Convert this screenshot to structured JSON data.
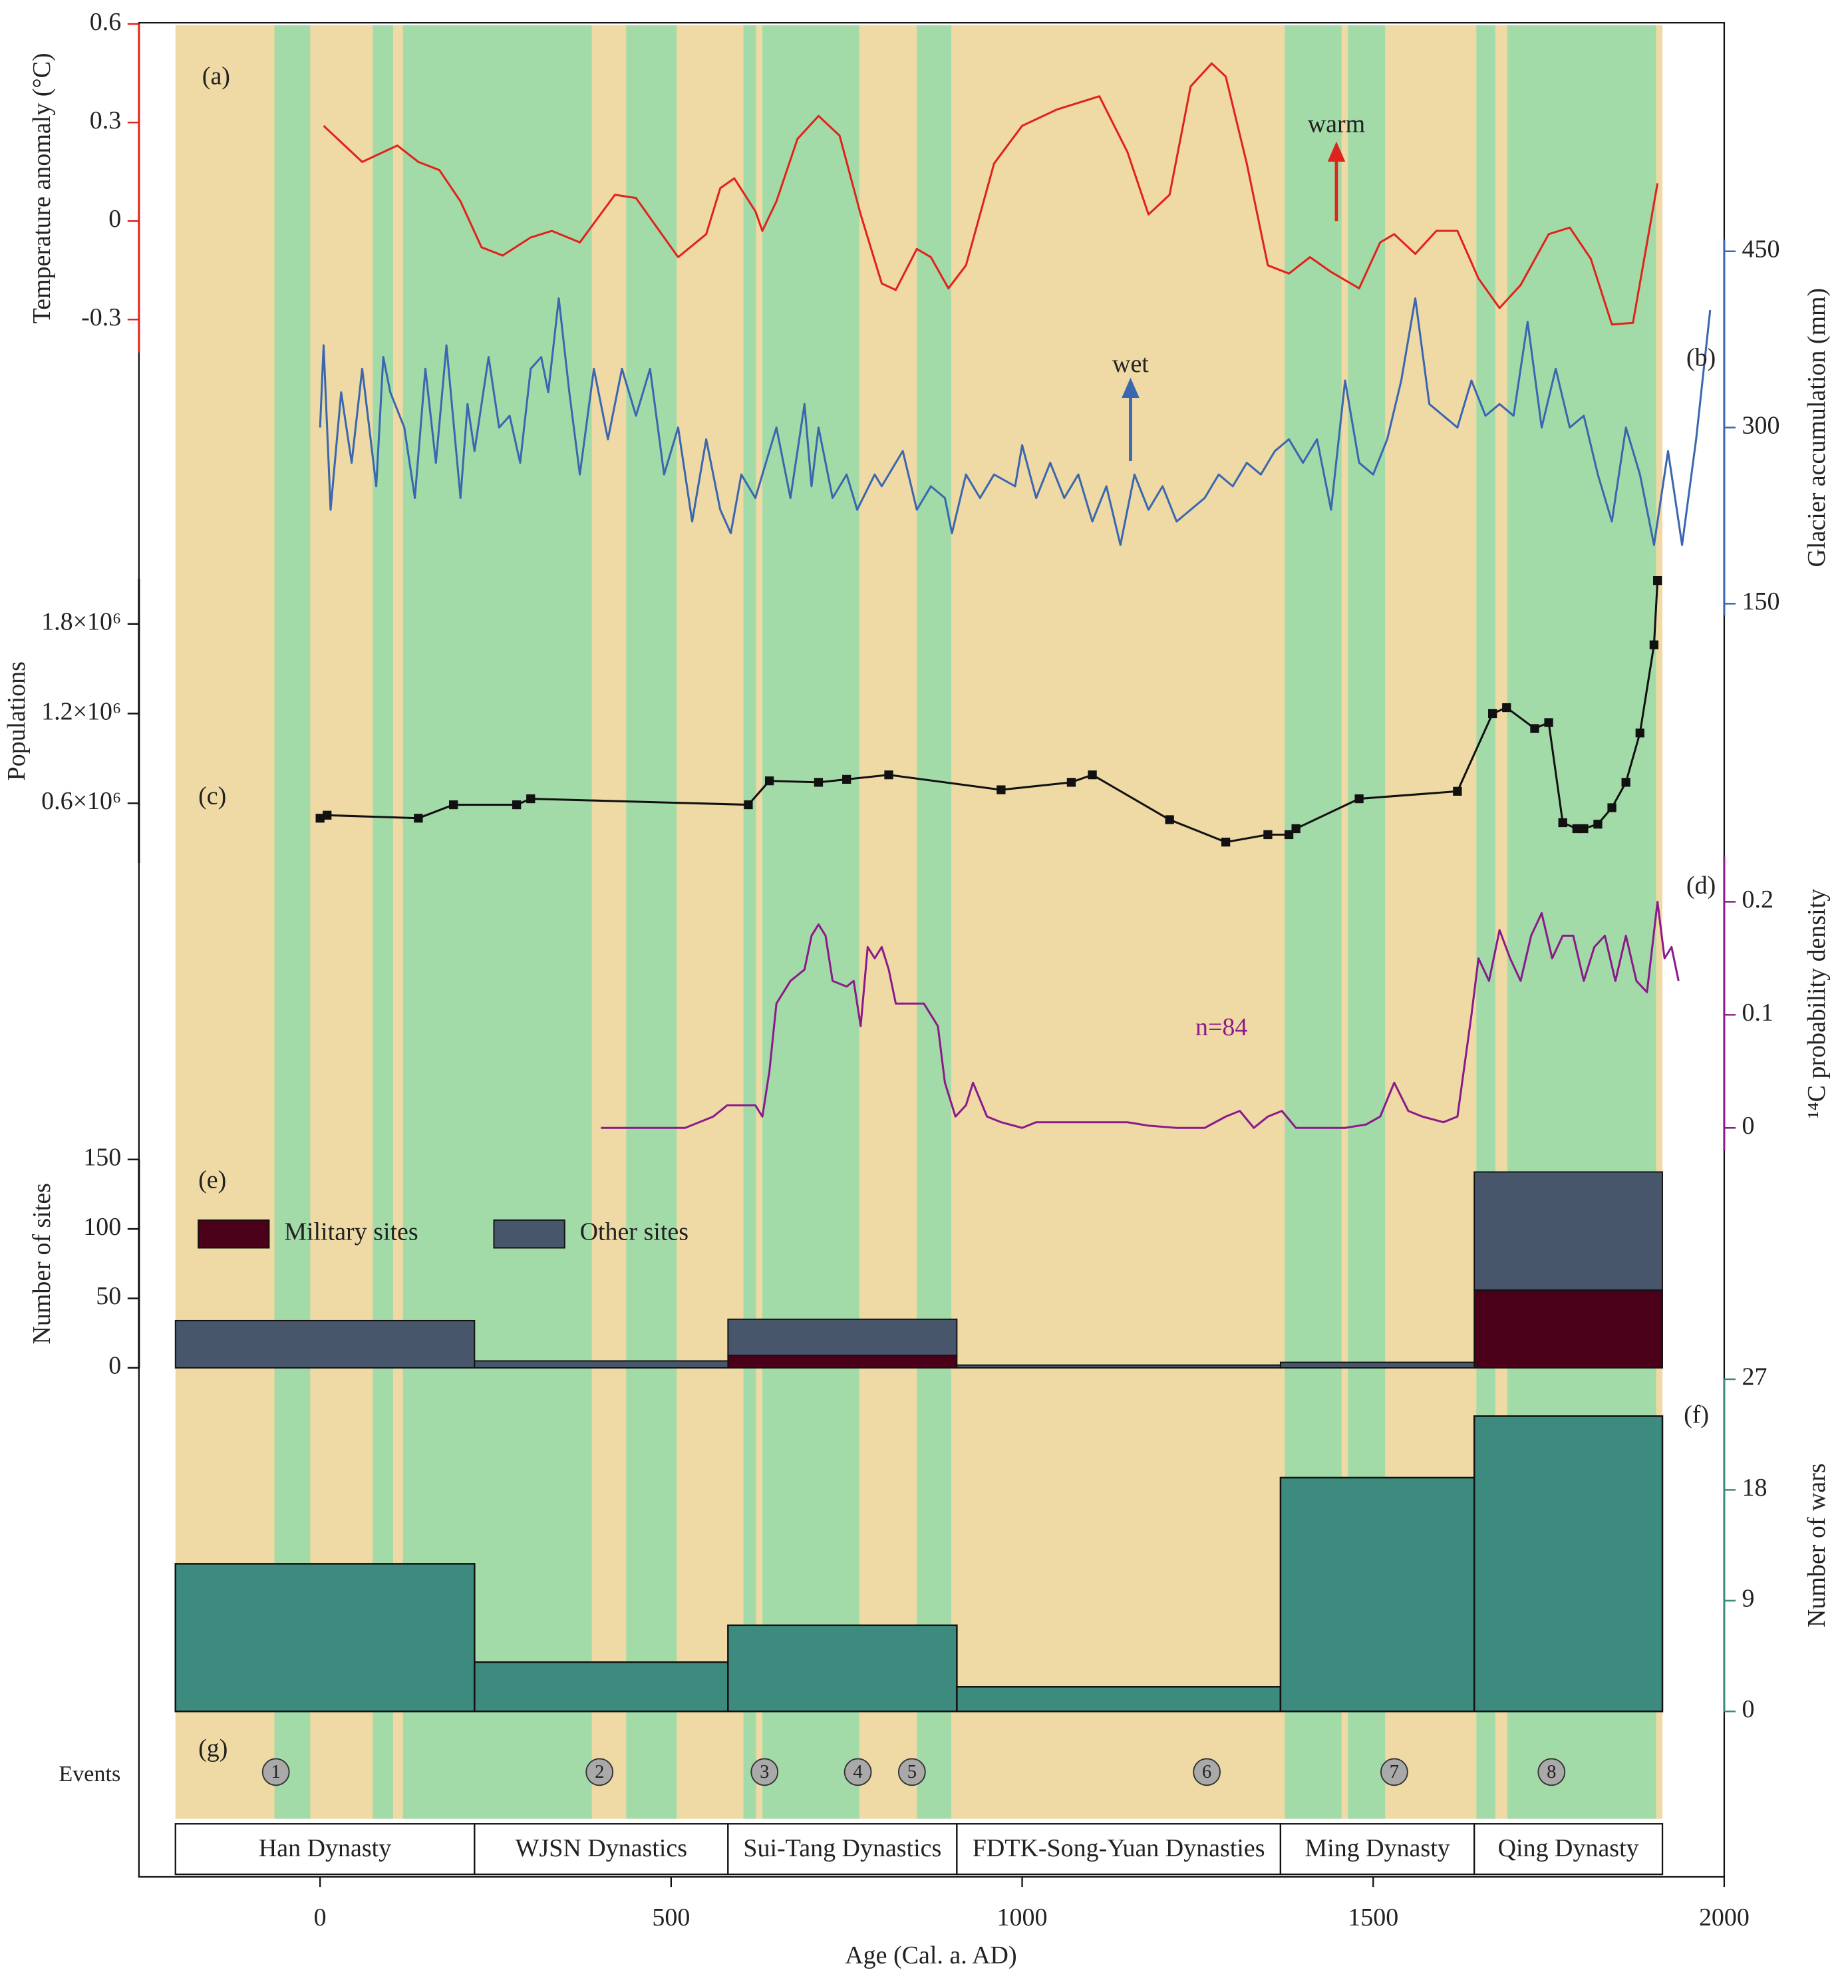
{
  "x_axis": {
    "label": "Age (Cal. a. AD)",
    "xlim": [
      -258,
      2000
    ],
    "xticks": [
      0,
      500,
      1000,
      1500,
      2000
    ]
  },
  "background": {
    "base_color": "#efd9a5",
    "band_color": "#a3dba8",
    "bands": [
      [
        -65,
        -14
      ],
      [
        75,
        104
      ],
      [
        118,
        387
      ],
      [
        436,
        508
      ],
      [
        603,
        621
      ],
      [
        630,
        768
      ],
      [
        850,
        899
      ],
      [
        1374,
        1455
      ],
      [
        1464,
        1517
      ],
      [
        1647,
        1674
      ],
      [
        1691,
        1903
      ]
    ]
  },
  "periods": {
    "names": [
      "Han Dynasty",
      "WJSN Dynastics",
      "Sui-Tang Dynastics",
      "FDTK-Song-Yuan Dynasties",
      "Ming Dynasty",
      "Qing Dynasty"
    ],
    "bounds": [
      -206,
      220,
      581,
      907,
      1368,
      1644,
      1912
    ]
  },
  "events": {
    "label": "Events",
    "panel_label": "(g)",
    "names": [
      "1",
      "2",
      "3",
      "4",
      "5",
      "6",
      "7",
      "8"
    ],
    "x": [
      -63,
      398,
      633,
      766,
      843,
      1263,
      1530,
      1754
    ]
  },
  "chart_data": [
    {
      "type": "line",
      "panel_label": "(a)",
      "ylabel": "Temperature anomaly (°C)",
      "axis_side": "left",
      "color": "#e0231c",
      "annotation": "warm",
      "ylim": [
        -0.4,
        0.6
      ],
      "yticks": [
        0.6,
        0.3,
        0,
        -0.3
      ],
      "x": [
        5,
        60,
        110,
        140,
        170,
        200,
        230,
        260,
        300,
        330,
        370,
        420,
        450,
        480,
        510,
        550,
        570,
        590,
        620,
        630,
        650,
        680,
        710,
        740,
        770,
        800,
        820,
        850,
        870,
        895,
        920,
        960,
        1000,
        1050,
        1080,
        1110,
        1150,
        1180,
        1210,
        1240,
        1270,
        1290,
        1320,
        1350,
        1380,
        1410,
        1440,
        1480,
        1510,
        1530,
        1560,
        1590,
        1620,
        1650,
        1680,
        1710,
        1750,
        1780,
        1810,
        1840,
        1870,
        1905
      ],
      "values": [
        0.29,
        0.18,
        0.23,
        0.18,
        0.155,
        0.06,
        -0.08,
        -0.105,
        -0.05,
        -0.03,
        -0.065,
        0.08,
        0.07,
        -0.02,
        -0.11,
        -0.04,
        0.1,
        0.13,
        0.03,
        -0.03,
        0.06,
        0.25,
        0.32,
        0.26,
        0.02,
        -0.19,
        -0.21,
        -0.085,
        -0.11,
        -0.205,
        -0.135,
        0.175,
        0.29,
        0.34,
        0.36,
        0.38,
        0.21,
        0.02,
        0.08,
        0.41,
        0.48,
        0.44,
        0.175,
        -0.135,
        -0.16,
        -0.11,
        -0.155,
        -0.205,
        -0.065,
        -0.04,
        -0.1,
        -0.03,
        -0.03,
        -0.175,
        -0.265,
        -0.195,
        -0.04,
        -0.02,
        -0.115,
        -0.315,
        -0.31,
        0.115
      ]
    },
    {
      "type": "line",
      "panel_label": "(b)",
      "ylabel": "Glacier accumulation (mm)",
      "axis_side": "right",
      "color": "#3a67b0",
      "annotation": "wet",
      "ylim": [
        140,
        460
      ],
      "yticks": [
        450,
        300,
        150
      ],
      "x": [
        0,
        5,
        15,
        30,
        45,
        60,
        80,
        90,
        100,
        120,
        135,
        150,
        165,
        180,
        200,
        210,
        220,
        240,
        255,
        270,
        285,
        300,
        315,
        325,
        340,
        355,
        370,
        390,
        410,
        430,
        450,
        470,
        490,
        510,
        530,
        550,
        570,
        585,
        600,
        620,
        650,
        670,
        690,
        700,
        710,
        730,
        750,
        765,
        790,
        800,
        830,
        850,
        870,
        890,
        900,
        920,
        940,
        960,
        990,
        1000,
        1020,
        1040,
        1060,
        1080,
        1100,
        1120,
        1140,
        1160,
        1180,
        1200,
        1220,
        1240,
        1260,
        1280,
        1300,
        1320,
        1340,
        1360,
        1380,
        1400,
        1420,
        1440,
        1460,
        1480,
        1500,
        1520,
        1540,
        1560,
        1580,
        1600,
        1620,
        1640,
        1660,
        1680,
        1700,
        1720,
        1740,
        1760,
        1780,
        1800,
        1820,
        1840,
        1860,
        1880,
        1900,
        1920,
        1940,
        1960,
        1980
      ],
      "values": [
        300,
        370,
        230,
        330,
        270,
        350,
        250,
        360,
        330,
        300,
        240,
        350,
        270,
        370,
        240,
        320,
        280,
        360,
        300,
        310,
        270,
        350,
        360,
        330,
        410,
        330,
        260,
        350,
        290,
        350,
        310,
        350,
        260,
        300,
        220,
        290,
        230,
        210,
        260,
        240,
        300,
        240,
        320,
        250,
        300,
        240,
        260,
        230,
        260,
        250,
        280,
        230,
        250,
        240,
        210,
        260,
        240,
        260,
        250,
        285,
        240,
        270,
        240,
        260,
        220,
        250,
        200,
        260,
        230,
        250,
        220,
        230,
        240,
        260,
        250,
        270,
        260,
        280,
        290,
        270,
        290,
        230,
        340,
        270,
        260,
        290,
        340,
        410,
        320,
        310,
        300,
        340,
        310,
        320,
        310,
        390,
        300,
        350,
        300,
        310,
        260,
        220,
        300,
        260,
        200,
        280,
        200,
        290,
        400
      ]
    },
    {
      "type": "line",
      "panel_label": "(c)",
      "ylabel": "Populations",
      "axis_side": "left",
      "color": "#111111",
      "markers": true,
      "ylim": [
        200000,
        2100000
      ],
      "yticks": [
        {
          "value": 1800000,
          "label": "1.8×10⁶"
        },
        {
          "value": 1200000,
          "label": "1.2×10⁶"
        },
        {
          "value": 600000,
          "label": "0.6×10⁶"
        }
      ],
      "x": [
        0,
        10,
        140,
        190,
        280,
        300,
        610,
        640,
        710,
        750,
        810,
        970,
        1070,
        1100,
        1210,
        1290,
        1350,
        1380,
        1390,
        1480,
        1620,
        1670,
        1690,
        1730,
        1750,
        1770,
        1790,
        1800,
        1820,
        1840,
        1860,
        1880,
        1900,
        1905
      ],
      "values": [
        500000,
        520000,
        500000,
        590000,
        590000,
        630000,
        590000,
        750000,
        740000,
        760000,
        790000,
        690000,
        740000,
        790000,
        490000,
        340000,
        390000,
        390000,
        430000,
        630000,
        680000,
        1200000,
        1240000,
        1100000,
        1140000,
        470000,
        430000,
        430000,
        460000,
        570000,
        740000,
        1070000,
        1660000,
        2090000
      ]
    },
    {
      "type": "line",
      "panel_label": "(d)",
      "ylabel": "¹⁴C probability density",
      "axis_side": "right",
      "color": "#8b1a8b",
      "annotation": "n=84",
      "ylim": [
        -0.02,
        0.24
      ],
      "yticks": [
        0.2,
        0.1,
        0
      ],
      "x": [
        400,
        520,
        560,
        580,
        600,
        620,
        630,
        640,
        650,
        670,
        690,
        700,
        710,
        720,
        730,
        750,
        760,
        770,
        780,
        790,
        800,
        810,
        820,
        840,
        860,
        880,
        890,
        905,
        920,
        930,
        950,
        970,
        1000,
        1020,
        1060,
        1100,
        1150,
        1180,
        1220,
        1260,
        1290,
        1310,
        1330,
        1350,
        1370,
        1390,
        1420,
        1460,
        1490,
        1510,
        1530,
        1550,
        1570,
        1600,
        1620,
        1640,
        1650,
        1665,
        1680,
        1695,
        1710,
        1725,
        1740,
        1755,
        1770,
        1785,
        1800,
        1815,
        1830,
        1845,
        1860,
        1875,
        1890,
        1905,
        1915,
        1925,
        1935
      ],
      "values": [
        0,
        0,
        0.01,
        0.02,
        0.02,
        0.02,
        0.01,
        0.05,
        0.11,
        0.13,
        0.14,
        0.17,
        0.18,
        0.17,
        0.13,
        0.125,
        0.13,
        0.09,
        0.16,
        0.15,
        0.16,
        0.14,
        0.11,
        0.11,
        0.11,
        0.09,
        0.04,
        0.01,
        0.02,
        0.04,
        0.01,
        0.005,
        0,
        0.005,
        0.005,
        0.005,
        0.005,
        0.002,
        0,
        0,
        0.01,
        0.015,
        0,
        0.01,
        0.015,
        0,
        0,
        0,
        0.003,
        0.01,
        0.04,
        0.015,
        0.01,
        0.005,
        0.01,
        0.1,
        0.15,
        0.13,
        0.175,
        0.15,
        0.13,
        0.17,
        0.19,
        0.15,
        0.17,
        0.17,
        0.13,
        0.16,
        0.17,
        0.13,
        0.17,
        0.13,
        0.12,
        0.2,
        0.15,
        0.16,
        0.13
      ]
    },
    {
      "type": "stacked_bar",
      "panel_label": "(e)",
      "ylabel": "Number of sites",
      "axis_side": "left",
      "ylim": [
        0,
        150
      ],
      "yticks": [
        150,
        100,
        50,
        0
      ],
      "series": [
        {
          "name": "Military sites",
          "color": "#4b0019",
          "values": [
            0,
            0,
            9,
            0,
            0,
            56
          ]
        },
        {
          "name": "Other sites",
          "color": "#48566b",
          "values": [
            34,
            5,
            26,
            2,
            4,
            85
          ]
        }
      ]
    },
    {
      "type": "bar",
      "panel_label": "(f)",
      "ylabel": "Number of wars",
      "axis_side": "right",
      "color": "#3d8a7e",
      "ylim": [
        0,
        27
      ],
      "yticks": [
        27,
        18,
        9,
        0
      ],
      "values": [
        12,
        4,
        7,
        2,
        19,
        24
      ]
    }
  ]
}
